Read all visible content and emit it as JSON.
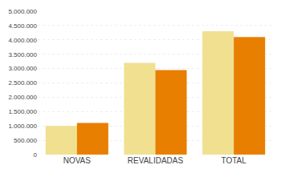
{
  "chart_data": {
    "type": "bar",
    "categories": [
      "NOVAS",
      "REVALIDADAS",
      "TOTAL"
    ],
    "series": [
      {
        "color": "#f0e090",
        "values": [
          1000000,
          3200000,
          4300000
        ]
      },
      {
        "color": "#e87f00",
        "values": [
          1100000,
          2950000,
          4100000
        ]
      }
    ],
    "ylim": [
      0,
      5000000
    ],
    "yticks": [
      0,
      {
        "value": 500000,
        "label": "500.000"
      },
      {
        "value": 1000000,
        "label": "1.000.000"
      },
      {
        "value": 1500000,
        "label": "1.500.000"
      },
      {
        "value": 2000000,
        "label": "2.000.000"
      },
      {
        "value": 2500000,
        "label": "2.500.000"
      },
      {
        "value": 3000000,
        "label": "3.000.000"
      },
      {
        "value": 3500000,
        "label": "3.500.000"
      },
      {
        "value": 4000000,
        "label": "4.000.000"
      },
      {
        "value": 4500000,
        "label": "4.500.000"
      },
      {
        "value": 5000000,
        "label": "5.000.000"
      }
    ],
    "grid": true
  }
}
